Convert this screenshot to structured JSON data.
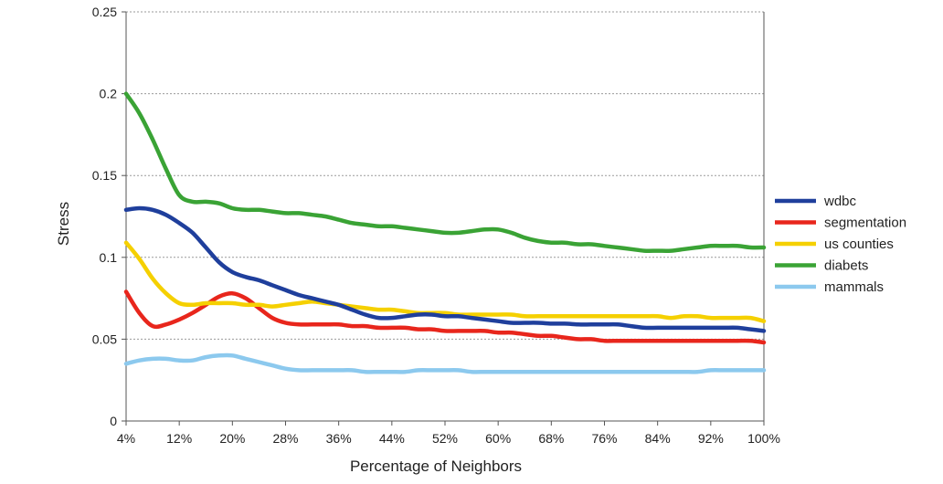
{
  "chart_data": {
    "type": "line",
    "xlabel": "Percentage of Neighbors",
    "ylabel": "Stress",
    "ylim": [
      0,
      0.25
    ],
    "yticks": [
      "0",
      "0.05",
      "0.1",
      "0.15",
      "0.2",
      "0.25"
    ],
    "x_tick_labels": [
      "4%",
      "12%",
      "20%",
      "28%",
      "36%",
      "44%",
      "52%",
      "60%",
      "68%",
      "76%",
      "84%",
      "92%",
      "100%"
    ],
    "x": [
      4,
      6,
      8,
      10,
      12,
      14,
      16,
      18,
      20,
      22,
      24,
      26,
      28,
      30,
      32,
      34,
      36,
      38,
      40,
      42,
      44,
      46,
      48,
      50,
      52,
      54,
      56,
      58,
      60,
      62,
      64,
      66,
      68,
      70,
      72,
      74,
      76,
      78,
      80,
      82,
      84,
      86,
      88,
      90,
      92,
      94,
      96,
      98,
      100
    ],
    "grid": "horizontal dotted",
    "legend_position": "right",
    "series": [
      {
        "name": "wdbc",
        "color": "#1f3f9c",
        "values": [
          0.129,
          0.13,
          0.129,
          0.126,
          0.121,
          0.115,
          0.106,
          0.097,
          0.091,
          0.088,
          0.086,
          0.083,
          0.08,
          0.077,
          0.075,
          0.073,
          0.071,
          0.068,
          0.065,
          0.063,
          0.063,
          0.064,
          0.065,
          0.065,
          0.064,
          0.064,
          0.063,
          0.062,
          0.061,
          0.06,
          0.06,
          0.06,
          0.0595,
          0.0595,
          0.059,
          0.059,
          0.059,
          0.059,
          0.058,
          0.057,
          0.057,
          0.057,
          0.057,
          0.057,
          0.057,
          0.057,
          0.057,
          0.056,
          0.055
        ]
      },
      {
        "name": "segmentation",
        "color": "#e8261c",
        "values": [
          0.079,
          0.066,
          0.058,
          0.059,
          0.062,
          0.066,
          0.071,
          0.076,
          0.078,
          0.075,
          0.069,
          0.063,
          0.06,
          0.059,
          0.059,
          0.059,
          0.059,
          0.058,
          0.058,
          0.057,
          0.057,
          0.057,
          0.056,
          0.056,
          0.055,
          0.055,
          0.055,
          0.055,
          0.054,
          0.054,
          0.053,
          0.052,
          0.052,
          0.051,
          0.05,
          0.05,
          0.049,
          0.049,
          0.049,
          0.049,
          0.049,
          0.049,
          0.049,
          0.049,
          0.049,
          0.049,
          0.049,
          0.049,
          0.048
        ]
      },
      {
        "name": "us counties",
        "color": "#f5d000",
        "values": [
          0.109,
          0.099,
          0.087,
          0.078,
          0.072,
          0.071,
          0.072,
          0.072,
          0.072,
          0.071,
          0.071,
          0.07,
          0.071,
          0.072,
          0.073,
          0.072,
          0.071,
          0.07,
          0.069,
          0.068,
          0.068,
          0.067,
          0.066,
          0.066,
          0.066,
          0.065,
          0.065,
          0.065,
          0.065,
          0.065,
          0.064,
          0.064,
          0.064,
          0.064,
          0.064,
          0.064,
          0.064,
          0.064,
          0.064,
          0.064,
          0.064,
          0.063,
          0.064,
          0.064,
          0.063,
          0.063,
          0.063,
          0.063,
          0.061
        ]
      },
      {
        "name": "diabets",
        "color": "#3aa335",
        "values": [
          0.2,
          0.188,
          0.172,
          0.154,
          0.138,
          0.134,
          0.134,
          0.133,
          0.13,
          0.129,
          0.129,
          0.128,
          0.127,
          0.127,
          0.126,
          0.125,
          0.123,
          0.121,
          0.12,
          0.119,
          0.119,
          0.118,
          0.117,
          0.116,
          0.115,
          0.115,
          0.116,
          0.117,
          0.117,
          0.115,
          0.112,
          0.11,
          0.109,
          0.109,
          0.108,
          0.108,
          0.107,
          0.106,
          0.105,
          0.104,
          0.104,
          0.104,
          0.105,
          0.106,
          0.107,
          0.107,
          0.107,
          0.106,
          0.106
        ]
      },
      {
        "name": "mammals",
        "color": "#8cc9ee",
        "values": [
          0.035,
          0.037,
          0.038,
          0.038,
          0.037,
          0.037,
          0.039,
          0.04,
          0.04,
          0.038,
          0.036,
          0.034,
          0.032,
          0.031,
          0.031,
          0.031,
          0.031,
          0.031,
          0.03,
          0.03,
          0.03,
          0.03,
          0.031,
          0.031,
          0.031,
          0.031,
          0.03,
          0.03,
          0.03,
          0.03,
          0.03,
          0.03,
          0.03,
          0.03,
          0.03,
          0.03,
          0.03,
          0.03,
          0.03,
          0.03,
          0.03,
          0.03,
          0.03,
          0.03,
          0.031,
          0.031,
          0.031,
          0.031,
          0.031
        ]
      }
    ]
  }
}
